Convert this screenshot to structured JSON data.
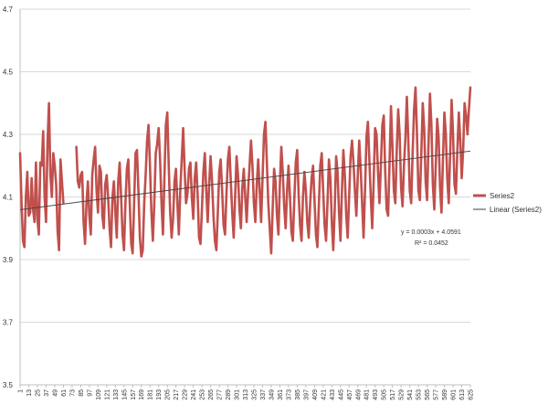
{
  "chart_data": {
    "type": "line",
    "ylim": [
      3.5,
      4.7
    ],
    "yticks": [
      "3.5",
      "3.7",
      "3.9",
      "4.1",
      "4.3",
      "4.5",
      "4.7"
    ],
    "xlim": [
      1,
      625
    ],
    "xtick_start": 1,
    "xtick_step": 12,
    "grid": "horizontal",
    "legend_position": "right",
    "colors": {
      "series": "#c0504d",
      "trendline": "#404040",
      "grid": "#d9d9d9",
      "axis": "#bfbfbf"
    },
    "series": [
      {
        "name": "Series2",
        "gaps": [
          [
            62,
            78
          ]
        ],
        "segments": [
          [
            1,
            4.24
          ],
          [
            3,
            4.08
          ],
          [
            5,
            3.96
          ],
          [
            7,
            3.94
          ],
          [
            9,
            4.1
          ],
          [
            11,
            4.18
          ],
          [
            13,
            4.04
          ],
          [
            15,
            4.05
          ],
          [
            17,
            4.16
          ],
          [
            19,
            4.06
          ],
          [
            21,
            4.02
          ],
          [
            23,
            4.21
          ],
          [
            25,
            4.03
          ],
          [
            27,
            3.98
          ],
          [
            29,
            4.21
          ],
          [
            31,
            4.2
          ],
          [
            33,
            4.31
          ],
          [
            35,
            4.1
          ],
          [
            37,
            4.02
          ],
          [
            39,
            4.27
          ],
          [
            41,
            4.4
          ],
          [
            43,
            4.17
          ],
          [
            45,
            4.1
          ],
          [
            47,
            4.24
          ],
          [
            49,
            4.2
          ],
          [
            51,
            4.14
          ],
          [
            53,
            3.99
          ],
          [
            55,
            3.93
          ],
          [
            57,
            4.22
          ],
          [
            59,
            4.15
          ],
          [
            61,
            4.08
          ],
          [
            79,
            4.26
          ],
          [
            81,
            4.15
          ],
          [
            83,
            4.13
          ],
          [
            85,
            4.17
          ],
          [
            87,
            4.18
          ],
          [
            89,
            4.02
          ],
          [
            91,
            3.95
          ],
          [
            93,
            4.08
          ],
          [
            95,
            4.15
          ],
          [
            97,
            4.04
          ],
          [
            99,
            3.98
          ],
          [
            101,
            4.17
          ],
          [
            103,
            4.22
          ],
          [
            105,
            4.26
          ],
          [
            107,
            4.12
          ],
          [
            109,
            4.05
          ],
          [
            111,
            4.2
          ],
          [
            113,
            4.18
          ],
          [
            115,
            4.04
          ],
          [
            117,
            4.0
          ],
          [
            119,
            4.14
          ],
          [
            121,
            4.17
          ],
          [
            123,
            4.1
          ],
          [
            125,
            4.0
          ],
          [
            127,
            3.94
          ],
          [
            129,
            4.1
          ],
          [
            131,
            4.15
          ],
          [
            133,
            4.05
          ],
          [
            135,
            3.97
          ],
          [
            137,
            4.15
          ],
          [
            139,
            4.21
          ],
          [
            141,
            4.1
          ],
          [
            143,
            3.98
          ],
          [
            145,
            3.93
          ],
          [
            147,
            4.08
          ],
          [
            149,
            4.19
          ],
          [
            151,
            4.22
          ],
          [
            153,
            4.08
          ],
          [
            155,
            3.95
          ],
          [
            157,
            3.92
          ],
          [
            159,
            4.08
          ],
          [
            161,
            4.24
          ],
          [
            163,
            4.25
          ],
          [
            165,
            4.12
          ],
          [
            167,
            3.97
          ],
          [
            169,
            3.91
          ],
          [
            171,
            3.93
          ],
          [
            173,
            4.08
          ],
          [
            175,
            4.17
          ],
          [
            177,
            4.28
          ],
          [
            179,
            4.33
          ],
          [
            181,
            4.2
          ],
          [
            183,
            4.05
          ],
          [
            185,
            3.96
          ],
          [
            187,
            4.08
          ],
          [
            189,
            4.24
          ],
          [
            191,
            4.27
          ],
          [
            193,
            4.32
          ],
          [
            195,
            4.22
          ],
          [
            197,
            4.08
          ],
          [
            199,
            3.98
          ],
          [
            201,
            4.16
          ],
          [
            203,
            4.33
          ],
          [
            205,
            4.37
          ],
          [
            207,
            4.2
          ],
          [
            209,
            4.05
          ],
          [
            211,
            3.97
          ],
          [
            213,
            4.03
          ],
          [
            215,
            4.15
          ],
          [
            217,
            4.19
          ],
          [
            219,
            4.08
          ],
          [
            221,
            3.98
          ],
          [
            223,
            4.12
          ],
          [
            225,
            4.22
          ],
          [
            227,
            4.32
          ],
          [
            229,
            4.19
          ],
          [
            231,
            4.08
          ],
          [
            233,
            4.11
          ],
          [
            235,
            4.19
          ],
          [
            237,
            4.21
          ],
          [
            239,
            4.1
          ],
          [
            241,
            4.03
          ],
          [
            243,
            4.16
          ],
          [
            245,
            4.21
          ],
          [
            247,
            4.11
          ],
          [
            249,
            3.97
          ],
          [
            251,
            3.95
          ],
          [
            253,
            4.06
          ],
          [
            255,
            4.18
          ],
          [
            257,
            4.24
          ],
          [
            259,
            4.12
          ],
          [
            261,
            4.02
          ],
          [
            263,
            4.14
          ],
          [
            265,
            4.23
          ],
          [
            267,
            4.15
          ],
          [
            269,
            4.04
          ],
          [
            271,
            3.96
          ],
          [
            273,
            3.93
          ],
          [
            275,
            4.05
          ],
          [
            277,
            4.18
          ],
          [
            279,
            4.22
          ],
          [
            281,
            4.12
          ],
          [
            283,
            4.01
          ],
          [
            285,
            3.98
          ],
          [
            287,
            4.11
          ],
          [
            289,
            4.22
          ],
          [
            291,
            4.26
          ],
          [
            293,
            4.15
          ],
          [
            295,
            4.05
          ],
          [
            297,
            3.97
          ],
          [
            299,
            4.1
          ],
          [
            301,
            4.23
          ],
          [
            303,
            4.17
          ],
          [
            305,
            4.06
          ],
          [
            307,
            4.0
          ],
          [
            309,
            4.13
          ],
          [
            311,
            4.19
          ],
          [
            313,
            4.1
          ],
          [
            315,
            4.02
          ],
          [
            317,
            4.12
          ],
          [
            319,
            4.2
          ],
          [
            321,
            4.28
          ],
          [
            323,
            4.2
          ],
          [
            325,
            4.08
          ],
          [
            327,
            4.02
          ],
          [
            329,
            4.14
          ],
          [
            331,
            4.22
          ],
          [
            333,
            4.12
          ],
          [
            335,
            4.02
          ],
          [
            337,
            4.16
          ],
          [
            339,
            4.3
          ],
          [
            341,
            4.34
          ],
          [
            343,
            4.21
          ],
          [
            345,
            4.08
          ],
          [
            347,
            4.0
          ],
          [
            349,
            3.92
          ],
          [
            351,
            4.06
          ],
          [
            353,
            4.19
          ],
          [
            355,
            4.15
          ],
          [
            357,
            4.04
          ],
          [
            359,
            3.98
          ],
          [
            361,
            4.14
          ],
          [
            363,
            4.26
          ],
          [
            365,
            4.18
          ],
          [
            367,
            4.07
          ],
          [
            369,
            4.0
          ],
          [
            371,
            4.12
          ],
          [
            373,
            4.2
          ],
          [
            375,
            4.1
          ],
          [
            377,
            3.99
          ],
          [
            379,
            3.96
          ],
          [
            381,
            4.09
          ],
          [
            383,
            4.21
          ],
          [
            385,
            4.25
          ],
          [
            387,
            4.11
          ],
          [
            389,
            4.01
          ],
          [
            391,
            3.96
          ],
          [
            393,
            4.1
          ],
          [
            395,
            4.18
          ],
          [
            397,
            4.12
          ],
          [
            399,
            4.02
          ],
          [
            401,
            3.97
          ],
          [
            403,
            4.08
          ],
          [
            405,
            4.16
          ],
          [
            407,
            4.2
          ],
          [
            409,
            4.09
          ],
          [
            411,
            3.98
          ],
          [
            413,
            3.94
          ],
          [
            415,
            4.07
          ],
          [
            417,
            4.2
          ],
          [
            419,
            4.24
          ],
          [
            421,
            4.12
          ],
          [
            423,
            4.01
          ],
          [
            425,
            3.96
          ],
          [
            427,
            4.08
          ],
          [
            429,
            4.22
          ],
          [
            431,
            4.16
          ],
          [
            433,
            4.02
          ],
          [
            435,
            3.93
          ],
          [
            437,
            4.06
          ],
          [
            439,
            4.23
          ],
          [
            441,
            4.18
          ],
          [
            443,
            4.05
          ],
          [
            445,
            3.96
          ],
          [
            447,
            4.12
          ],
          [
            449,
            4.25
          ],
          [
            451,
            4.17
          ],
          [
            453,
            4.04
          ],
          [
            455,
            3.97
          ],
          [
            457,
            4.1
          ],
          [
            459,
            4.23
          ],
          [
            461,
            4.28
          ],
          [
            463,
            4.21
          ],
          [
            465,
            4.12
          ],
          [
            467,
            4.04
          ],
          [
            469,
            4.17
          ],
          [
            471,
            4.28
          ],
          [
            473,
            4.19
          ],
          [
            475,
            4.08
          ],
          [
            477,
            3.97
          ],
          [
            479,
            4.12
          ],
          [
            481,
            4.29
          ],
          [
            483,
            4.34
          ],
          [
            485,
            4.22
          ],
          [
            487,
            4.1
          ],
          [
            489,
            4.0
          ],
          [
            491,
            4.15
          ],
          [
            493,
            4.32
          ],
          [
            495,
            4.3
          ],
          [
            497,
            4.18
          ],
          [
            499,
            4.08
          ],
          [
            501,
            4.2
          ],
          [
            503,
            4.33
          ],
          [
            505,
            4.36
          ],
          [
            507,
            4.18
          ],
          [
            509,
            4.06
          ],
          [
            511,
            4.04
          ],
          [
            513,
            4.21
          ],
          [
            515,
            4.39
          ],
          [
            517,
            4.26
          ],
          [
            519,
            4.12
          ],
          [
            521,
            4.08
          ],
          [
            523,
            4.25
          ],
          [
            525,
            4.38
          ],
          [
            527,
            4.3
          ],
          [
            529,
            4.13
          ],
          [
            531,
            4.07
          ],
          [
            533,
            4.2
          ],
          [
            535,
            4.29
          ],
          [
            537,
            4.42
          ],
          [
            539,
            4.28
          ],
          [
            541,
            4.12
          ],
          [
            543,
            4.08
          ],
          [
            545,
            4.24
          ],
          [
            547,
            4.38
          ],
          [
            549,
            4.45
          ],
          [
            551,
            4.3
          ],
          [
            553,
            4.12
          ],
          [
            555,
            4.09
          ],
          [
            557,
            4.24
          ],
          [
            559,
            4.4
          ],
          [
            561,
            4.32
          ],
          [
            563,
            4.15
          ],
          [
            565,
            4.09
          ],
          [
            567,
            4.27
          ],
          [
            569,
            4.43
          ],
          [
            571,
            4.33
          ],
          [
            573,
            4.14
          ],
          [
            575,
            4.06
          ],
          [
            577,
            4.2
          ],
          [
            579,
            4.35
          ],
          [
            581,
            4.29
          ],
          [
            583,
            4.13
          ],
          [
            585,
            4.05
          ],
          [
            587,
            4.22
          ],
          [
            589,
            4.37
          ],
          [
            591,
            4.3
          ],
          [
            593,
            4.16
          ],
          [
            595,
            4.08
          ],
          [
            597,
            4.24
          ],
          [
            599,
            4.41
          ],
          [
            601,
            4.3
          ],
          [
            603,
            4.14
          ],
          [
            605,
            4.11
          ],
          [
            607,
            4.25
          ],
          [
            609,
            4.37
          ],
          [
            611,
            4.28
          ],
          [
            613,
            4.16
          ],
          [
            615,
            4.25
          ],
          [
            617,
            4.4
          ],
          [
            619,
            4.36
          ],
          [
            621,
            4.3
          ],
          [
            623,
            4.38
          ],
          [
            625,
            4.45
          ]
        ]
      }
    ],
    "trendline": {
      "name": "Linear (Series2)",
      "slope": 0.0003,
      "intercept": 4.0591,
      "equation_label": "y = 0.0003x + 4.0591",
      "r2_label": "R² = 0.0452"
    },
    "legend": [
      {
        "label": "Series2",
        "style": "thick-red"
      },
      {
        "label": "Linear (Series2)",
        "style": "thin-gray"
      }
    ]
  }
}
